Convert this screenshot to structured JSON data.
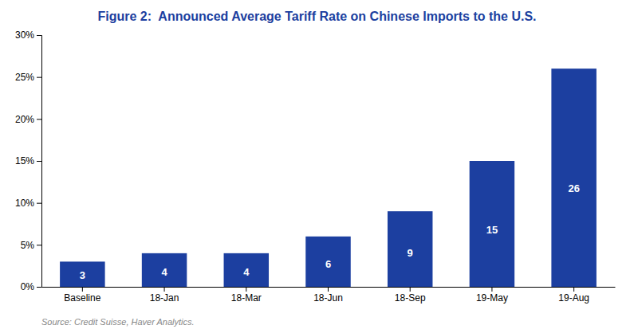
{
  "chart_data": {
    "type": "bar",
    "title": "Figure 2:  Announced Average Tariff Rate on Chinese Imports to the U.S.",
    "categories": [
      "Baseline",
      "18-Jan",
      "18-Mar",
      "18-Jun",
      "18-Sep",
      "19-May",
      "19-Aug"
    ],
    "values": [
      3,
      4,
      4,
      6,
      9,
      15,
      26
    ],
    "color": "#1c3fa0",
    "ylim": [
      0,
      30
    ],
    "yticks": [
      {
        "value": 0,
        "label": "0%"
      },
      {
        "value": 5,
        "label": "5%"
      },
      {
        "value": 10,
        "label": "10%"
      },
      {
        "value": 15,
        "label": "15%"
      },
      {
        "value": 20,
        "label": "20%"
      },
      {
        "value": 25,
        "label": "25%"
      },
      {
        "value": 30,
        "label": "30%"
      }
    ],
    "data_labels": true,
    "grid": false,
    "annotations": [
      "Source: Credit Suisse, Haver Analytics."
    ]
  }
}
